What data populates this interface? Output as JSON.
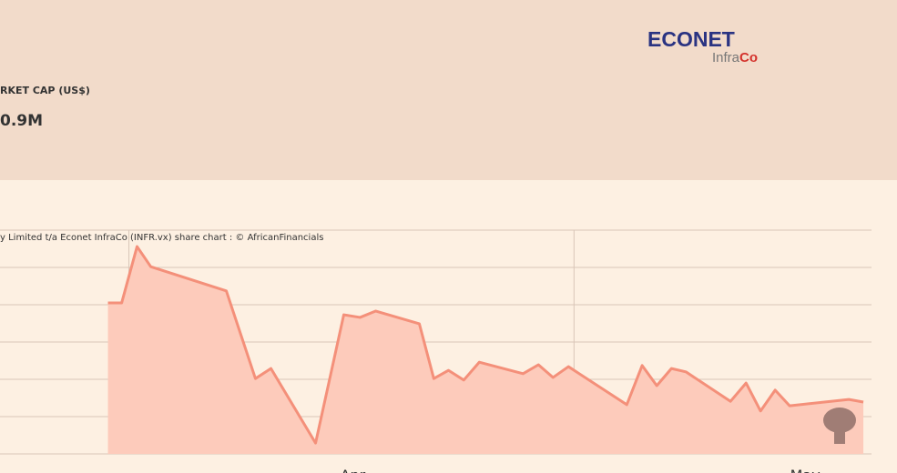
{
  "header": {
    "logo_main": "ECONET",
    "logo_sub_a": "Infra",
    "logo_sub_b": "Co",
    "metric_label": "RKET CAP (US$)",
    "metric_value": "0.9M"
  },
  "chart_data": {
    "type": "area",
    "caption": "y Limited t/a Econet InfraCo (INFR.vx) share chart : © AfricanFinancials",
    "color": "#f4907a",
    "fill": "#fdcbbb",
    "x": [
      -16.24,
      -15.33,
      -14.31,
      -13.4,
      -8.39,
      -6.46,
      -5.43,
      -2.47,
      -0.6,
      0.48,
      1.51,
      4.41,
      5.37,
      6.34,
      7.36,
      8.39,
      11.29,
      12.31,
      13.28,
      14.3,
      18.17,
      19.19,
      20.16,
      21.13,
      22.09,
      25.05,
      26.08,
      27.04,
      28.01,
      28.97,
      32.9,
      33.86
    ],
    "values": [
      4.05,
      4.05,
      5.56,
      5.02,
      4.37,
      2.02,
      2.29,
      0.29,
      3.73,
      3.66,
      3.83,
      3.49,
      2.02,
      2.24,
      1.98,
      2.46,
      2.15,
      2.39,
      2.05,
      2.34,
      1.32,
      2.37,
      1.83,
      2.29,
      2.2,
      1.41,
      1.9,
      1.15,
      1.71,
      1.29,
      1.46,
      1.39
    ],
    "xlim": [
      -23.4,
      34.4
    ],
    "ylim": [
      0,
      6
    ],
    "xticks": [
      {
        "value": 0,
        "label": "Apr"
      },
      {
        "value": 30,
        "label": "May"
      }
    ],
    "x_grid": [
      -14.85,
      14.67
    ],
    "y_grid": [
      0,
      1,
      2,
      3,
      4,
      5,
      6
    ]
  }
}
